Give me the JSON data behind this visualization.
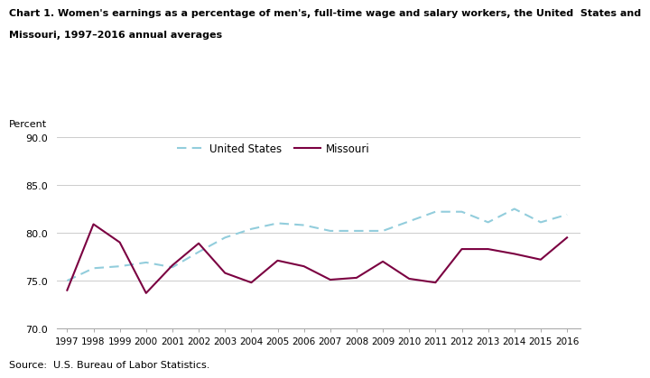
{
  "title_line1": "Chart 1. Women's earnings as a percentage of men's, full-time wage and salary workers, the United  States and",
  "title_line2": "Missouri, 1997–2016 annual averages",
  "ylabel": "Percent",
  "source": "Source:  U.S. Bureau of Labor Statistics.",
  "years": [
    1997,
    1998,
    1999,
    2000,
    2001,
    2002,
    2003,
    2004,
    2005,
    2006,
    2007,
    2008,
    2009,
    2010,
    2011,
    2012,
    2013,
    2014,
    2015,
    2016
  ],
  "us_data": [
    75.0,
    76.3,
    76.5,
    76.9,
    76.4,
    78.0,
    79.5,
    80.4,
    81.0,
    80.8,
    80.2,
    80.2,
    80.2,
    81.2,
    82.2,
    82.2,
    81.1,
    82.5,
    81.1,
    81.9
  ],
  "mo_data": [
    74.0,
    80.9,
    79.0,
    73.7,
    76.6,
    78.9,
    75.8,
    74.8,
    77.1,
    76.5,
    75.1,
    75.3,
    77.0,
    75.2,
    74.8,
    78.3,
    78.3,
    77.8,
    77.2,
    79.5
  ],
  "us_color": "#92CDDC",
  "mo_color": "#7B0041",
  "ylim": [
    70.0,
    90.0
  ],
  "yticks": [
    70.0,
    75.0,
    80.0,
    85.0,
    90.0
  ],
  "legend_labels": [
    "United States",
    "Missouri"
  ],
  "background_color": "#ffffff",
  "grid_color": "#cccccc"
}
